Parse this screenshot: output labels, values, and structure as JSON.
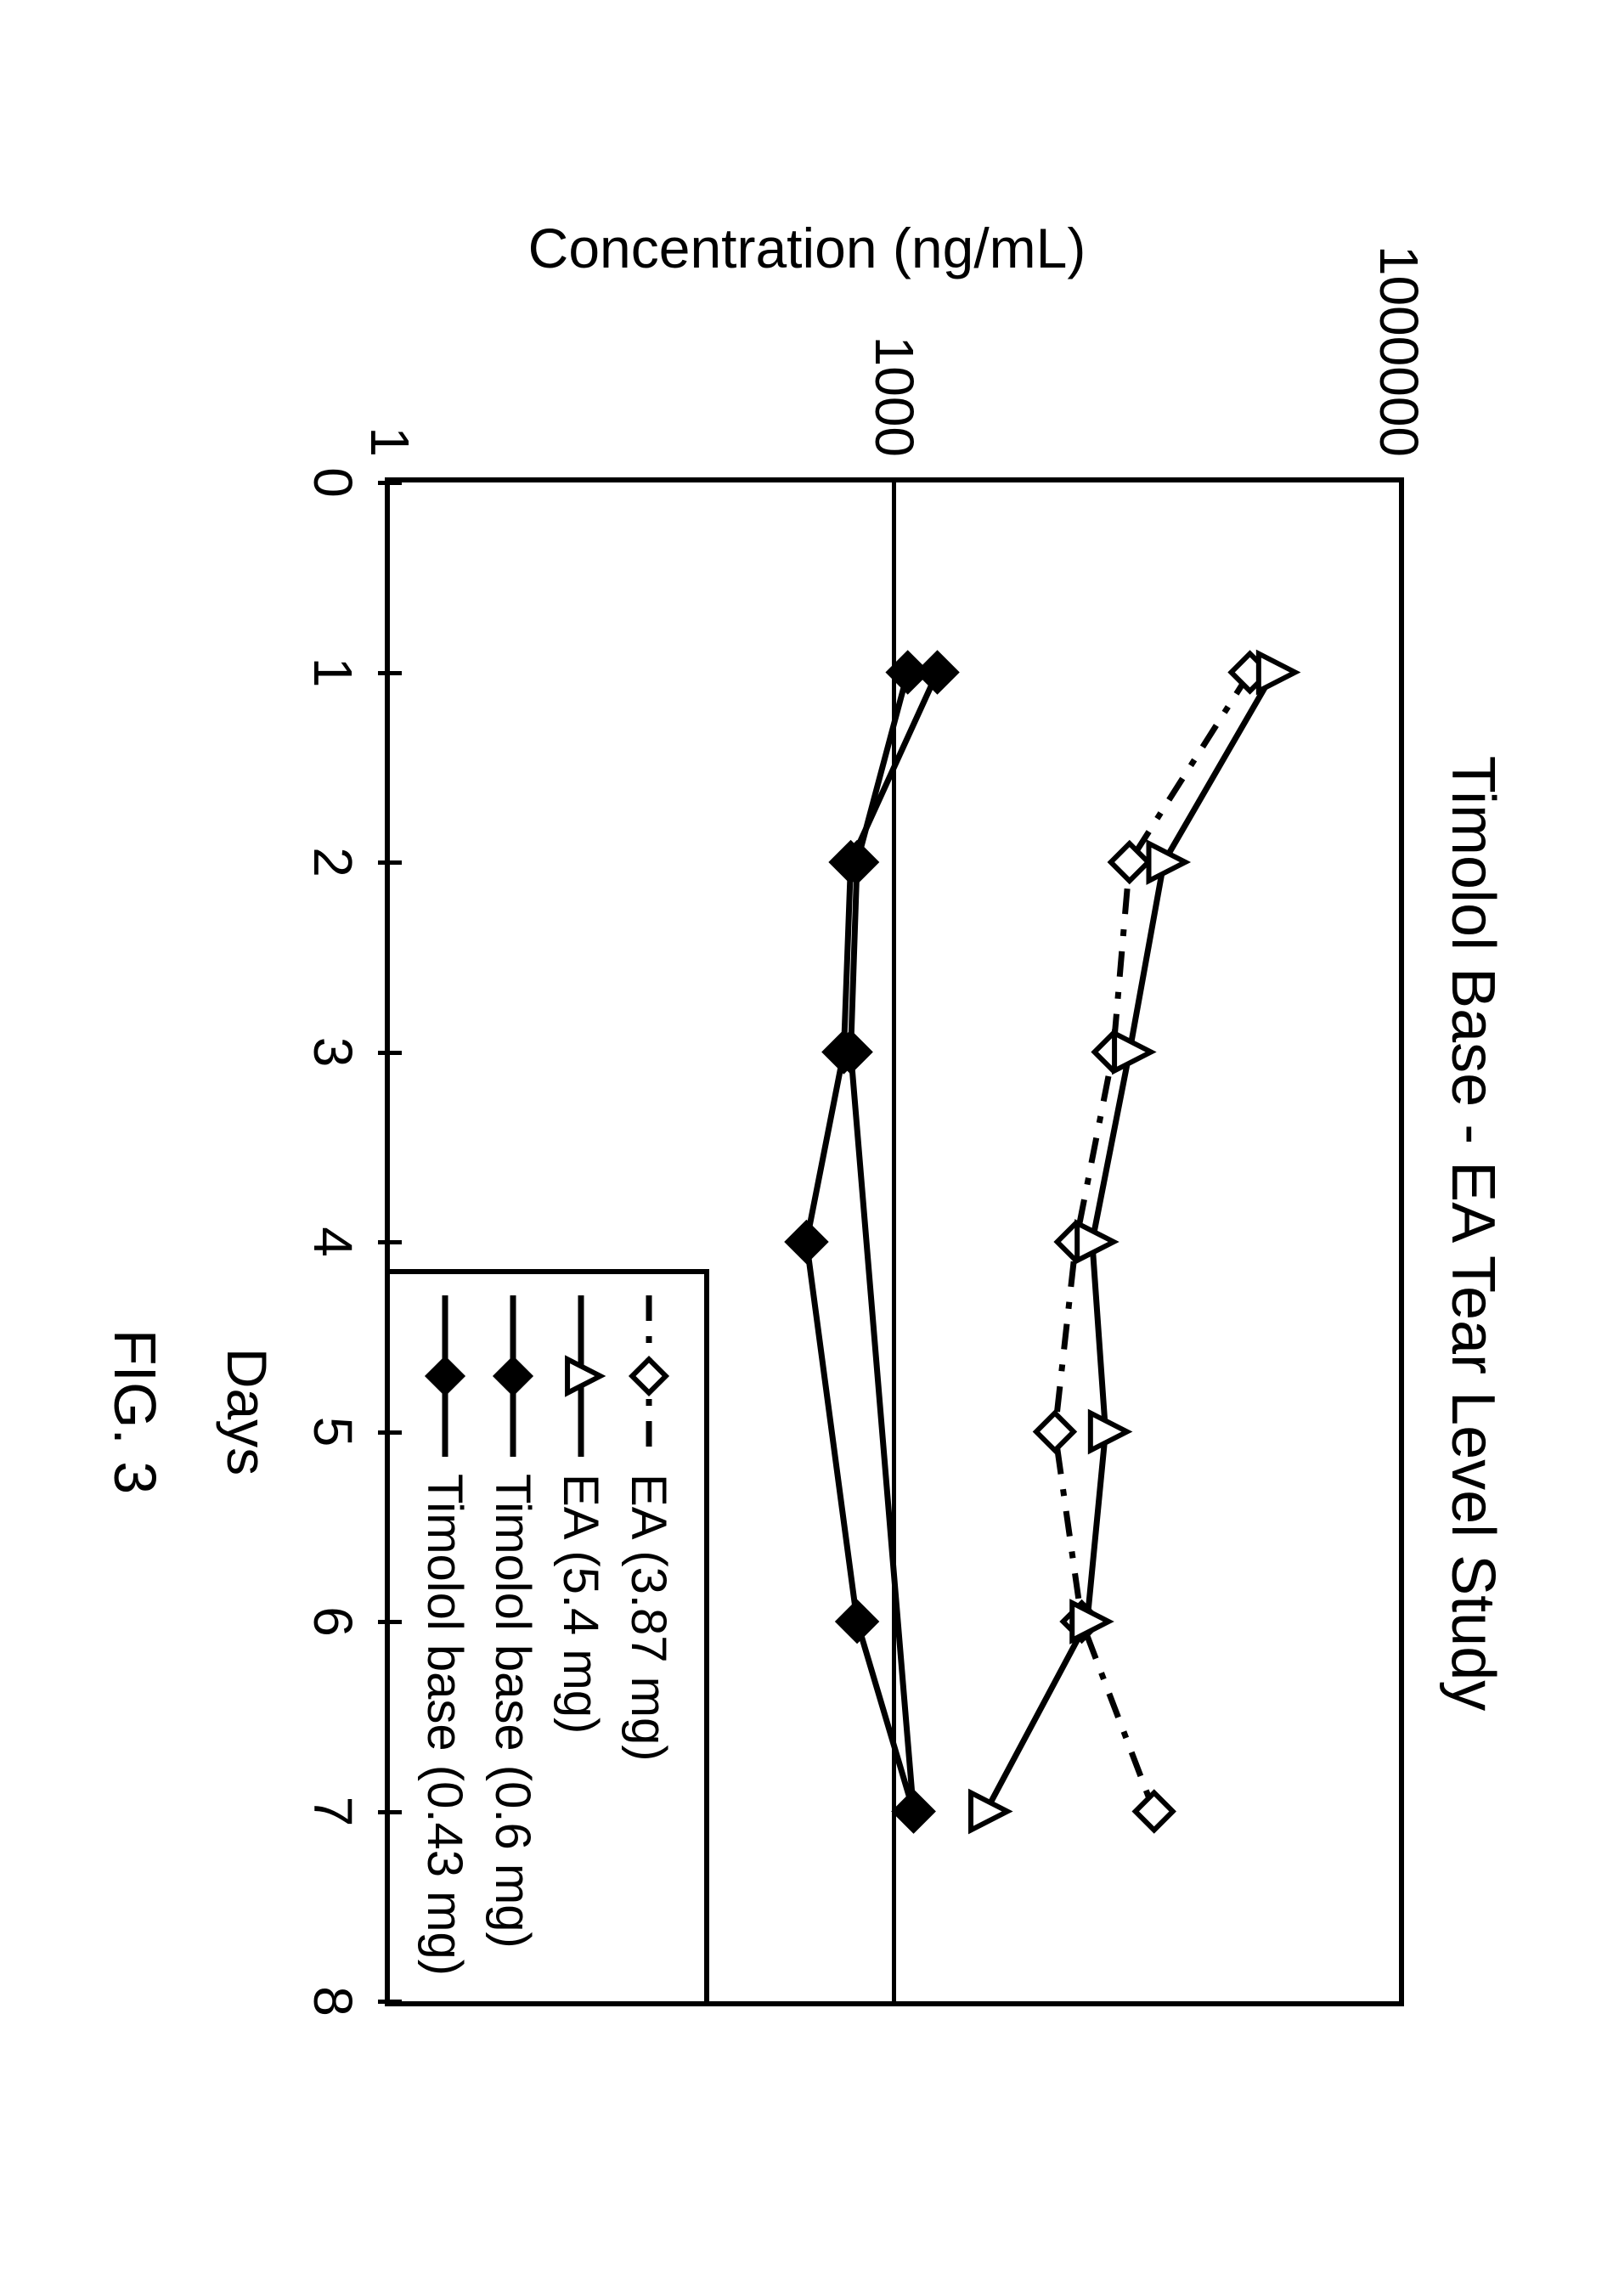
{
  "chart": {
    "type": "line",
    "title": "Timolol Base - EA Tear Level Study",
    "title_fontsize": 72,
    "xlabel": "Days",
    "ylabel": "Concentration (ng/mL)",
    "label_fontsize": 66,
    "fig_label": "FIG. 3",
    "background_color": "#ffffff",
    "border_color": "#000000",
    "grid_color": "#000000",
    "tick_fontsize": 64,
    "xlim": [
      0,
      8
    ],
    "xtick_step": 1,
    "xtick_labels": [
      "0",
      "1",
      "2",
      "3",
      "4",
      "5",
      "6",
      "7",
      "8"
    ],
    "yscale": "log",
    "ylim": [
      1,
      1000000
    ],
    "ytick_values": [
      1,
      1000,
      1000000
    ],
    "ytick_labels": [
      "1",
      "1000",
      "1000000"
    ],
    "line_width": 7,
    "marker_size": 22,
    "series": [
      {
        "name": "EA (3.87 mg)",
        "color": "#000000",
        "line_style": "dash-dot",
        "marker": "diamond-open",
        "x": [
          1,
          2,
          3,
          4,
          5,
          6,
          7
        ],
        "y": [
          130000,
          25000,
          20000,
          12000,
          9000,
          13000,
          35000
        ]
      },
      {
        "name": "EA (5.4 mg)",
        "color": "#000000",
        "line_style": "solid",
        "marker": "triangle-open",
        "x": [
          1,
          2,
          3,
          4,
          5,
          6,
          7
        ],
        "y": [
          180000,
          40000,
          25000,
          15000,
          18000,
          14000,
          3500
        ]
      },
      {
        "name": "Timolol base (0.6 mg)",
        "color": "#000000",
        "line_style": "solid",
        "marker": "diamond-filled",
        "x": [
          1,
          2,
          3,
          4,
          6,
          7
        ],
        "y": [
          1800,
          550,
          500,
          300,
          600,
          1300
        ]
      },
      {
        "name": "Timolol base (0.43 mg)",
        "color": "#000000",
        "line_style": "solid",
        "marker": "diamond-filled",
        "x": [
          1,
          2,
          3,
          7
        ],
        "y": [
          1200,
          600,
          550,
          1300
        ]
      }
    ],
    "legend": {
      "position": "bottom-right-inside",
      "border_color": "#000000",
      "background_color": "#ffffff",
      "fontsize": 58
    }
  }
}
